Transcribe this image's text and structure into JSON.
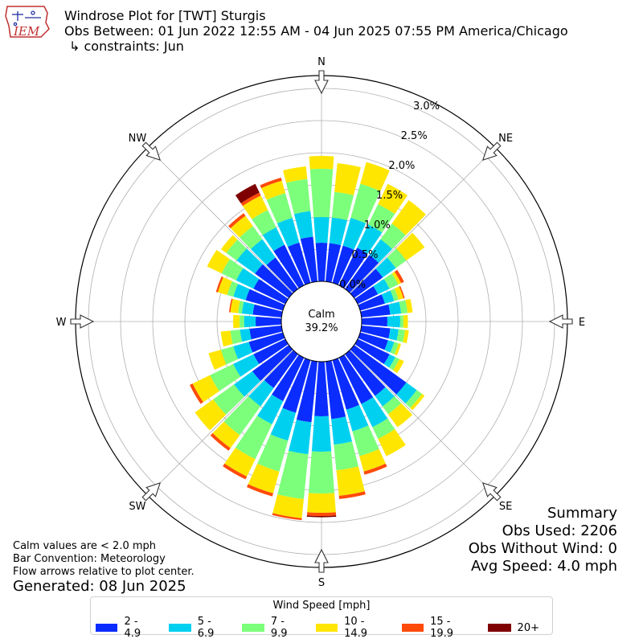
{
  "header": {
    "title": "Windrose Plot for [TWT] Sturgis",
    "obs_between": "Obs Between: 01 Jun 2022 12:55 AM - 04 Jun 2025 07:55 PM America/Chicago",
    "constraints": "↳ constraints: Jun",
    "logo_text": "IEM"
  },
  "summary": {
    "heading": "Summary",
    "obs_used": "Obs Used: 2206",
    "obs_without_wind": "Obs Without Wind: 0",
    "avg_speed": "Avg Speed: 4.0 mph"
  },
  "notes": {
    "calm_def": "Calm values are < 2.0 mph",
    "bar_convention": "Bar Convention: Meteorology",
    "flow_arrows": "Flow arrows relative to plot center.",
    "generated": "Generated: 08 Jun 2025"
  },
  "chart_data": {
    "type": "windrose",
    "calm_label": "Calm",
    "calm_value": "39.2%",
    "radial_ticks": [
      "0.0%",
      "0.5%",
      "1.0%",
      "1.5%",
      "2.0%",
      "2.5%",
      "3.0%"
    ],
    "radial_tick_values": [
      0.0,
      0.5,
      1.0,
      1.5,
      2.0,
      2.5,
      3.0
    ],
    "radial_max": 3.2,
    "compass_labels": [
      "N",
      "NE",
      "E",
      "SE",
      "S",
      "SW",
      "W",
      "NW"
    ],
    "legend_title": "Wind Speed [mph]",
    "bins": [
      {
        "label": "2 - 4.9",
        "color": "#0a2cff"
      },
      {
        "label": "5 - 6.9",
        "color": "#00d0f0"
      },
      {
        "label": "7 - 9.9",
        "color": "#7cff7a"
      },
      {
        "label": "10 - 14.9",
        "color": "#ffe600"
      },
      {
        "label": "15 - 19.9",
        "color": "#ff4a0a"
      },
      {
        "label": "20+",
        "color": "#7f0000"
      }
    ],
    "directions": [
      0,
      10,
      20,
      30,
      40,
      50,
      60,
      70,
      80,
      90,
      100,
      110,
      120,
      130,
      140,
      150,
      160,
      170,
      180,
      190,
      200,
      210,
      220,
      230,
      240,
      250,
      260,
      270,
      280,
      290,
      300,
      310,
      320,
      330,
      340,
      350
    ],
    "cumulative_pct": [
      [
        0.6,
        1.0,
        1.75,
        1.95,
        1.95,
        1.95
      ],
      [
        0.6,
        1.0,
        1.4,
        1.85,
        1.85,
        1.85
      ],
      [
        0.6,
        1.05,
        1.6,
        1.95,
        1.95,
        1.95
      ],
      [
        0.65,
        1.05,
        1.4,
        1.75,
        1.75,
        1.75
      ],
      [
        0.65,
        0.95,
        1.25,
        1.7,
        1.7,
        1.7
      ],
      [
        0.55,
        0.8,
        1.0,
        1.35,
        1.35,
        1.35
      ],
      [
        0.35,
        0.55,
        0.7,
        0.75,
        0.8,
        0.8
      ],
      [
        0.4,
        0.55,
        0.62,
        0.7,
        0.72,
        0.72
      ],
      [
        0.45,
        0.62,
        0.72,
        0.8,
        0.8,
        0.8
      ],
      [
        0.4,
        0.6,
        0.65,
        0.72,
        0.72,
        0.72
      ],
      [
        0.45,
        0.58,
        0.68,
        0.74,
        0.74,
        0.74
      ],
      [
        0.45,
        0.55,
        0.62,
        0.66,
        0.66,
        0.66
      ],
      [
        0.55,
        0.65,
        0.72,
        0.8,
        0.8,
        0.8
      ],
      [
        1.0,
        1.2,
        1.3,
        1.35,
        1.35,
        1.35
      ],
      [
        0.8,
        1.0,
        1.15,
        1.4,
        1.4,
        1.4
      ],
      [
        0.8,
        1.2,
        1.4,
        1.7,
        1.7,
        1.7
      ],
      [
        0.8,
        1.15,
        1.55,
        1.8,
        1.85,
        1.85
      ],
      [
        0.9,
        1.3,
        1.7,
        2.1,
        2.15,
        2.15
      ],
      [
        0.85,
        1.4,
        2.05,
        2.35,
        2.4,
        2.42
      ],
      [
        0.95,
        1.45,
        2.15,
        2.45,
        2.48,
        2.48
      ],
      [
        0.85,
        1.3,
        1.8,
        2.15,
        2.2,
        2.2
      ],
      [
        0.75,
        1.15,
        1.75,
        2.05,
        2.1,
        2.1
      ],
      [
        0.65,
        1.0,
        1.55,
        1.8,
        1.85,
        1.85
      ],
      [
        0.7,
        1.05,
        1.45,
        1.8,
        1.8,
        1.8
      ],
      [
        0.55,
        0.9,
        1.3,
        1.6,
        1.65,
        1.65
      ],
      [
        0.55,
        0.8,
        1.0,
        1.2,
        1.2,
        1.2
      ],
      [
        0.5,
        0.65,
        0.8,
        0.95,
        0.95,
        0.95
      ],
      [
        0.4,
        0.58,
        0.65,
        0.75,
        0.75,
        0.75
      ],
      [
        0.45,
        0.62,
        0.68,
        0.8,
        0.82,
        0.82
      ],
      [
        0.6,
        0.8,
        0.9,
        1.05,
        1.08,
        1.08
      ],
      [
        0.55,
        0.85,
        1.1,
        1.35,
        1.35,
        1.35
      ],
      [
        0.65,
        1.0,
        1.2,
        1.3,
        1.3,
        1.3
      ],
      [
        0.6,
        0.95,
        1.2,
        1.4,
        1.45,
        1.45
      ],
      [
        0.7,
        1.0,
        1.3,
        1.55,
        1.6,
        1.75
      ],
      [
        0.65,
        1.05,
        1.45,
        1.65,
        1.7,
        1.7
      ],
      [
        0.7,
        1.1,
        1.6,
        1.8,
        1.8,
        1.8
      ]
    ]
  }
}
